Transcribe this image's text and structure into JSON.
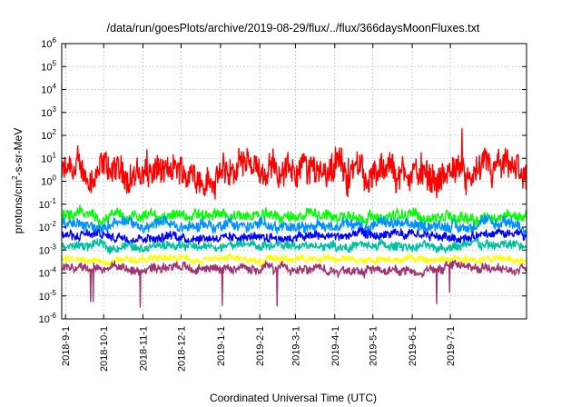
{
  "chart_data": {
    "type": "line",
    "title": "/data/run/goesPlots/archive/2019-08-29/flux/../flux/366daysMoonFluxes.txt",
    "xlabel": "Coordinated Universal Time (UTC)",
    "ylabel_parts": {
      "base": "protons/cm",
      "exp": "2",
      "rest": "-s-sr-MeV"
    },
    "xlim": [
      "2018-08-29",
      "2019-08-30"
    ],
    "ylim": [
      1e-06,
      1000000.0
    ],
    "y_scale": "log",
    "grid": true,
    "x_ticks": [
      "2018-9-1",
      "2018-10-1",
      "2018-11-1",
      "2018-12-1",
      "2019-1-1",
      "2019-2-1",
      "2019-3-1",
      "2019-4-1",
      "2019-5-1",
      "2019-6-1",
      "2019-7-1"
    ],
    "y_ticks": [
      {
        "base": "10",
        "exp": "-6"
      },
      {
        "base": "10",
        "exp": "-5"
      },
      {
        "base": "10",
        "exp": "-4"
      },
      {
        "base": "10",
        "exp": "-3"
      },
      {
        "base": "10",
        "exp": "-2"
      },
      {
        "base": "10",
        "exp": "-1"
      },
      {
        "base": "10",
        "exp": "0"
      },
      {
        "base": "10",
        "exp": "1"
      },
      {
        "base": "10",
        "exp": "2"
      },
      {
        "base": "10",
        "exp": "3"
      },
      {
        "base": "10",
        "exp": "4"
      },
      {
        "base": "10",
        "exp": "5"
      },
      {
        "base": "10",
        "exp": "6"
      }
    ],
    "series": [
      {
        "color": "#ff0000",
        "typical": 2.0,
        "spread_decades": 0.7
      },
      {
        "color": "#00ff00",
        "typical": 0.03,
        "spread_decades": 0.25
      },
      {
        "color": "#0090ff",
        "typical": 0.012,
        "spread_decades": 0.25
      },
      {
        "color": "#0000ff",
        "typical": 0.004,
        "spread_decades": 0.2
      },
      {
        "color": "#00c0a0",
        "typical": 0.0015,
        "spread_decades": 0.2
      },
      {
        "color": "#ffff00",
        "typical": 0.0004,
        "spread_decades": 0.15
      },
      {
        "color": "#a03470",
        "typical": 0.00015,
        "spread_decades": 0.2
      }
    ]
  }
}
